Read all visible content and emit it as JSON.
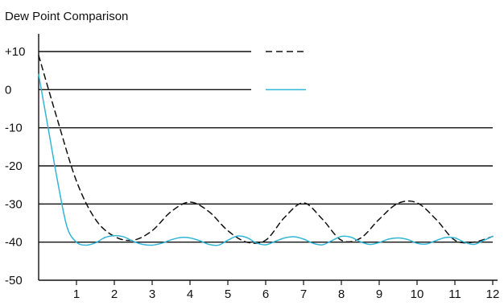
{
  "chart_data": {
    "type": "line",
    "title": "Dew Point Comparison",
    "xlabel": "",
    "ylabel": "",
    "xlim": [
      0,
      12
    ],
    "ylim": [
      -50,
      10
    ],
    "x_ticks": [
      1,
      2,
      3,
      4,
      5,
      6,
      7,
      8,
      9,
      10,
      11,
      12
    ],
    "y_ticks": [
      {
        "value": 10,
        "label": "+10"
      },
      {
        "value": 0,
        "label": "0"
      },
      {
        "value": -10,
        "label": "-10"
      },
      {
        "value": -20,
        "label": "-20"
      },
      {
        "value": -30,
        "label": "-30"
      },
      {
        "value": -40,
        "label": "-40"
      },
      {
        "value": -50,
        "label": "-50"
      }
    ],
    "grid": "horizontal",
    "legend": "top-right",
    "series": [
      {
        "color": "#111111",
        "dash": "dashed",
        "x": [
          0,
          0.5,
          1,
          1.5,
          2,
          2.5,
          3,
          3.5,
          4,
          4.5,
          5,
          5.5,
          6,
          6.5,
          7,
          7.5,
          8,
          8.5,
          9,
          9.5,
          10,
          10.5,
          11,
          11.5,
          12
        ],
        "values": [
          9,
          -8,
          -24,
          -34,
          -38.5,
          -39.5,
          -37,
          -32,
          -29.5,
          -32,
          -37,
          -40,
          -39.5,
          -33.5,
          -29.7,
          -34,
          -39.5,
          -39,
          -34,
          -29.8,
          -29.7,
          -34,
          -39.5,
          -40,
          -38.5
        ]
      },
      {
        "color": "#33b5d6",
        "dash": "solid",
        "x": [
          0,
          0.25,
          0.5,
          0.75,
          1,
          1.25,
          1.5,
          1.75,
          2,
          2.25,
          2.5,
          2.75,
          3,
          3.25,
          3.5,
          3.75,
          4,
          4.25,
          4.5,
          4.75,
          5,
          5.25,
          5.5,
          5.75,
          6,
          6.25,
          6.5,
          6.75,
          7,
          7.25,
          7.5,
          7.75,
          8,
          8.25,
          8.5,
          8.75,
          9,
          9.25,
          9.5,
          9.75,
          10,
          10.25,
          10.5,
          10.75,
          11,
          11.25,
          11.5,
          11.75,
          12
        ],
        "values": [
          4,
          -10,
          -24,
          -36,
          -40,
          -40.8,
          -40.2,
          -38.8,
          -38.3,
          -38.6,
          -39.8,
          -40.6,
          -40.8,
          -40.3,
          -39.4,
          -38.8,
          -38.9,
          -39.6,
          -40.6,
          -40.8,
          -39.5,
          -38.4,
          -38.8,
          -40.2,
          -40.7,
          -39.8,
          -38.9,
          -38.6,
          -39.2,
          -40.3,
          -40.7,
          -39.6,
          -38.5,
          -38.7,
          -39.9,
          -40.6,
          -40.1,
          -39.2,
          -38.9,
          -39.3,
          -40.3,
          -40.5,
          -39.6,
          -38.8,
          -38.9,
          -40,
          -40.6,
          -39.6,
          -38.5
        ]
      }
    ]
  }
}
